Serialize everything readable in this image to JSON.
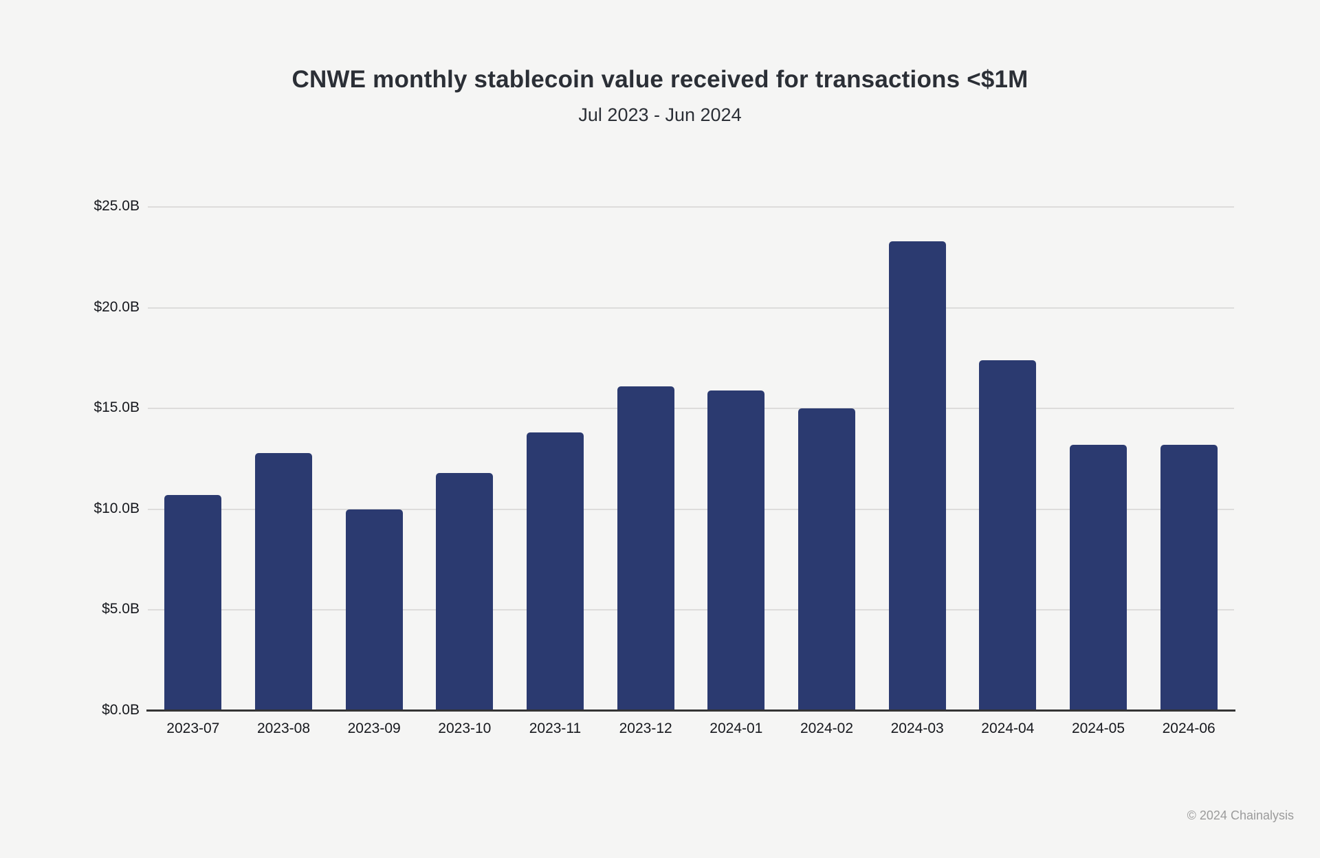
{
  "page": {
    "background_color": "#f5f5f4"
  },
  "chart_data": {
    "type": "bar",
    "title": "CNWE monthly stablecoin value received for transactions <$1M",
    "subtitle": "Jul 2023 - Jun 2024",
    "categories": [
      "2023-07",
      "2023-08",
      "2023-09",
      "2023-10",
      "2023-11",
      "2023-12",
      "2024-01",
      "2024-02",
      "2024-03",
      "2024-04",
      "2024-05",
      "2024-06"
    ],
    "values": [
      10.7,
      12.8,
      10.0,
      11.8,
      13.8,
      16.1,
      15.9,
      15.0,
      23.3,
      17.4,
      13.2,
      13.2
    ],
    "value_unit": "USD billions",
    "xlabel": "",
    "ylabel": "",
    "ylim": [
      0,
      25
    ],
    "yticks": [
      0,
      5,
      10,
      15,
      20,
      25
    ],
    "ytick_labels": [
      "$0.0B",
      "$5.0B",
      "$10.0B",
      "$15.0B",
      "$20.0B",
      "$25.0B"
    ],
    "grid": true,
    "legend": false,
    "bar_color": "#2b3a70",
    "gridline_color": "#dddcdb",
    "axis_line_color": "#343434"
  },
  "footer": {
    "copyright": "© 2024 Chainalysis"
  }
}
